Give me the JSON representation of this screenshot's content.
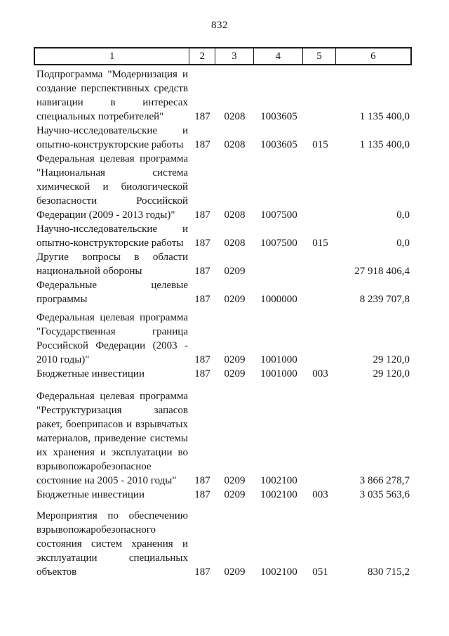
{
  "page_number": "832",
  "table": {
    "header_cells": [
      "1",
      "2",
      "3",
      "4",
      "5",
      "6"
    ],
    "rows": [
      {
        "name_lines": [
          "Подпрограмма \"Модернизация и",
          "создание перспективных средств",
          "навигации в интересах",
          "специальных потребителей\""
        ],
        "col2": "187",
        "col3": "0208",
        "col4": "1003605",
        "col5": "",
        "col6": "1 135 400,0"
      },
      {
        "name_lines": [
          "Научно-исследовательские и",
          "опытно-конструкторские работы"
        ],
        "col2": "187",
        "col3": "0208",
        "col4": "1003605",
        "col5": "015",
        "col6": "1 135 400,0"
      },
      {
        "name_lines": [
          "Федеральная целевая программа",
          "\"Национальная система",
          "химической и биологической",
          "безопасности Российской",
          "Федерации (2009 - 2013 годы)\""
        ],
        "col2": "187",
        "col3": "0208",
        "col4": "1007500",
        "col5": "",
        "col6": "0,0"
      },
      {
        "name_lines": [
          "Научно-исследовательские и",
          "опытно-конструкторские работы"
        ],
        "col2": "187",
        "col3": "0208",
        "col4": "1007500",
        "col5": "015",
        "col6": "0,0"
      },
      {
        "name_lines": [
          "Другие вопросы в области",
          "национальной обороны"
        ],
        "col2": "187",
        "col3": "0209",
        "col4": "",
        "col5": "",
        "col6": "27 918 406,4"
      },
      {
        "name_lines": [
          "Федеральные целевые",
          "программы"
        ],
        "col2": "187",
        "col3": "0209",
        "col4": "1000000",
        "col5": "",
        "col6": "8 239 707,8"
      },
      {
        "name_lines": [
          "Федеральная целевая программа",
          "\"Государственная граница",
          "Российской Федерации (2003 -",
          "2010 годы)\""
        ],
        "col2": "187",
        "col3": "0209",
        "col4": "1001000",
        "col5": "",
        "col6": "29 120,0"
      },
      {
        "name_lines": [
          "Бюджетные инвестиции"
        ],
        "col2": "187",
        "col3": "0209",
        "col4": "1001000",
        "col5": "003",
        "col6": "29 120,0"
      },
      {
        "name_lines": [
          "Федеральная целевая программа",
          "\"Реструктуризация запасов",
          "ракет, боеприпасов и взрывчатых",
          "материалов, приведение системы",
          "их хранения и эксплуатации во",
          "взрывопожаробезопасное",
          "состояние на 2005 - 2010 годы\""
        ],
        "col2": "187",
        "col3": "0209",
        "col4": "1002100",
        "col5": "",
        "col6": "3 866 278,7"
      },
      {
        "name_lines": [
          "Бюджетные инвестиции"
        ],
        "col2": "187",
        "col3": "0209",
        "col4": "1002100",
        "col5": "003",
        "col6": "3 035 563,6"
      },
      {
        "name_lines": [
          "Мероприятия по обеспечению",
          "взрывопожаробезопасного",
          "состояния систем хранения и",
          "эксплуатации специальных",
          "объектов"
        ],
        "col2": "187",
        "col3": "0209",
        "col4": "1002100",
        "col5": "051",
        "col6": "830 715,2"
      }
    ]
  }
}
